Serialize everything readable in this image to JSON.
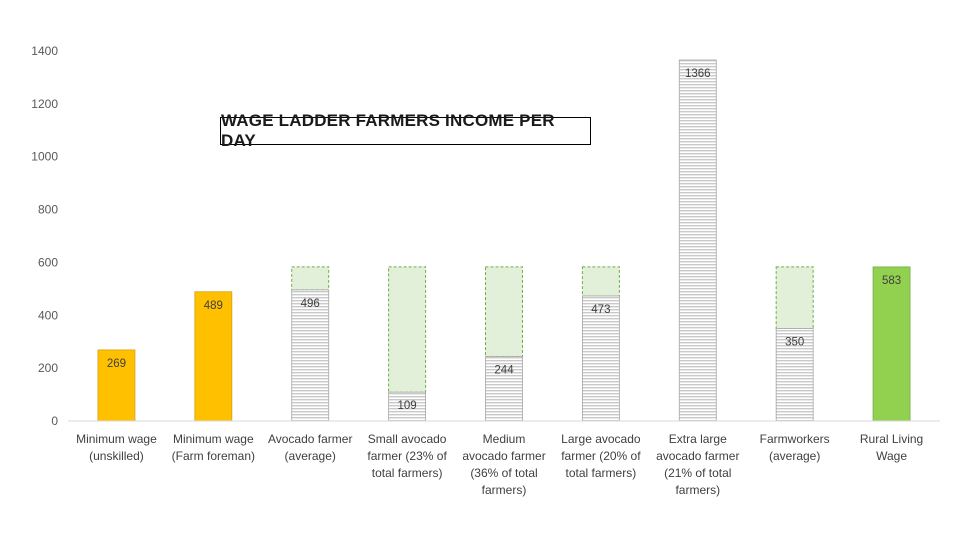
{
  "chart_data": {
    "type": "bar",
    "title": "WAGE LADDER FARMERS INCOME PER DAY",
    "ylim": [
      0,
      1400
    ],
    "yticks": [
      0,
      200,
      400,
      600,
      800,
      1000,
      1200,
      1400
    ],
    "grid": false,
    "reference_value": 583,
    "categories": [
      [
        "Minimum wage",
        "(unskilled)"
      ],
      [
        "Minimum wage",
        "(Farm foreman)"
      ],
      [
        "Avocado farmer",
        "(average)"
      ],
      [
        "Small avocado",
        "farmer (23% of",
        "total farmers)"
      ],
      [
        "Medium",
        "avocado farmer",
        "(36% of total",
        "farmers)"
      ],
      [
        "Large avocado",
        "farmer (20% of",
        "total farmers)"
      ],
      [
        "Extra large",
        "avocado farmer",
        "(21% of total",
        "farmers)"
      ],
      [
        "Farmworkers",
        "(average)"
      ],
      [
        "Rural Living",
        "Wage"
      ]
    ],
    "values": [
      269,
      489,
      496,
      109,
      244,
      473,
      1366,
      350,
      583
    ],
    "labels": [
      "269",
      "489",
      "496",
      "109",
      "244",
      "473",
      "1366",
      "350",
      "583"
    ],
    "styles": [
      "wage",
      "wage",
      "income",
      "income",
      "income",
      "income",
      "income",
      "income",
      "living"
    ],
    "colors": {
      "wage": "#ffc000",
      "wage_border": "#d4a017",
      "income_stripe": "#c9c9c9",
      "income_border": "#a6a6a6",
      "gap_fill": "#e2f0d9",
      "gap_border": "#70ad47",
      "living": "#92d050",
      "living_border": "#70ad47",
      "axis": "#d9d9d9"
    }
  }
}
